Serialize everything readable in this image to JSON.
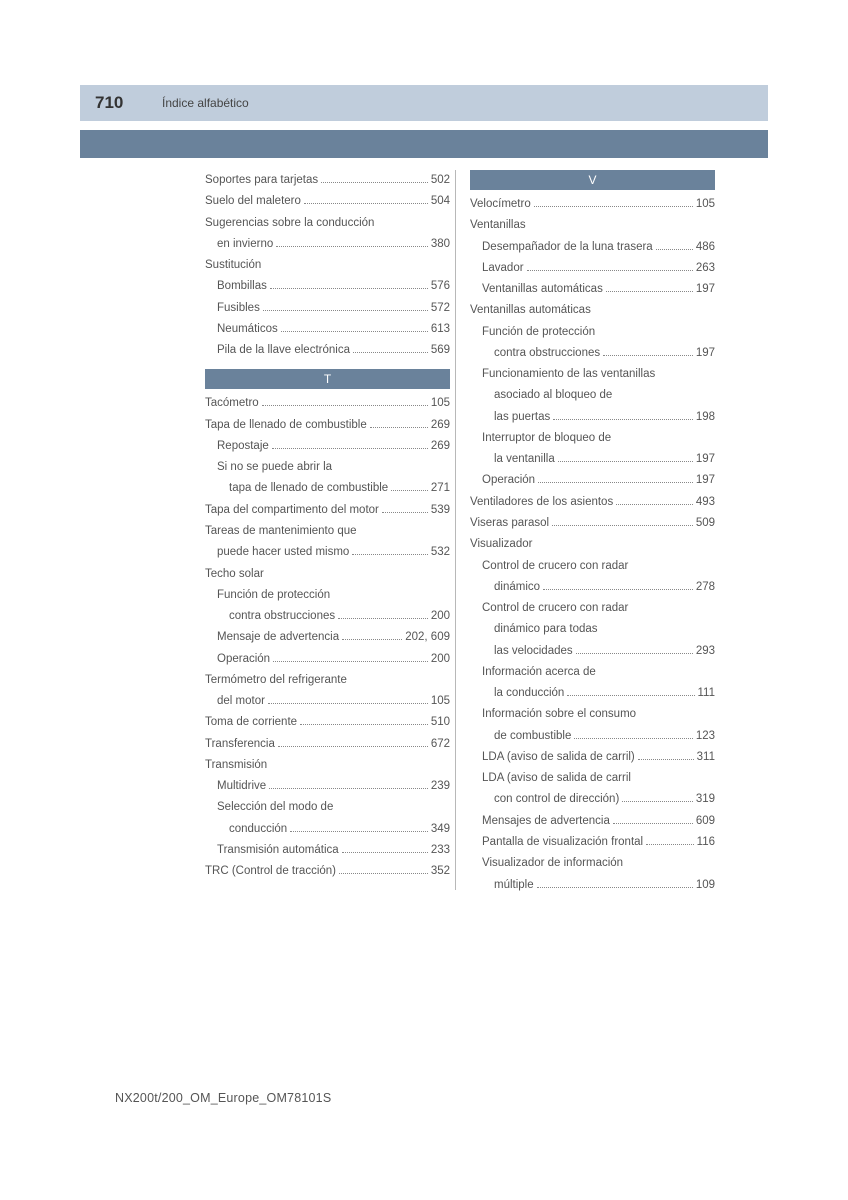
{
  "header": {
    "page_number": "710",
    "title": "Índice alfabético"
  },
  "footer": "NX200t/200_OM_Europe_OM78101S",
  "colors": {
    "header_band": "#c0cddc",
    "blue_bar": "#6a829b",
    "text": "#555555",
    "divider": "#b8b8b8"
  },
  "sections": {
    "T": "T",
    "V": "V"
  },
  "left_column": [
    {
      "label": "Soportes para tarjetas",
      "page": "502",
      "indent": 0
    },
    {
      "label": "Suelo del maletero",
      "page": "504",
      "indent": 0
    },
    {
      "label": "Sugerencias sobre la conducción",
      "page": "",
      "indent": 0,
      "noline": true
    },
    {
      "label": "en invierno",
      "page": "380",
      "indent": 1
    },
    {
      "label": "Sustitución",
      "page": "",
      "indent": 0,
      "noline": true
    },
    {
      "label": "Bombillas",
      "page": "576",
      "indent": 1
    },
    {
      "label": "Fusibles",
      "page": "572",
      "indent": 1
    },
    {
      "label": "Neumáticos",
      "page": "613",
      "indent": 1
    },
    {
      "label": "Pila de la llave electrónica",
      "page": "569",
      "indent": 1
    }
  ],
  "left_column_t": [
    {
      "label": "Tacómetro",
      "page": "105",
      "indent": 0
    },
    {
      "label": "Tapa de llenado de combustible",
      "page": "269",
      "indent": 0
    },
    {
      "label": "Repostaje",
      "page": "269",
      "indent": 1
    },
    {
      "label": "Si no se puede abrir la",
      "page": "",
      "indent": 1,
      "noline": true
    },
    {
      "label": "tapa de llenado de combustible",
      "page": "271",
      "indent": 2
    },
    {
      "label": "Tapa del compartimento del motor",
      "page": "539",
      "indent": 0
    },
    {
      "label": "Tareas de mantenimiento que",
      "page": "",
      "indent": 0,
      "noline": true
    },
    {
      "label": "puede hacer usted mismo",
      "page": "532",
      "indent": 1
    },
    {
      "label": "Techo solar",
      "page": "",
      "indent": 0,
      "noline": true
    },
    {
      "label": "Función de protección",
      "page": "",
      "indent": 1,
      "noline": true
    },
    {
      "label": "contra obstrucciones",
      "page": "200",
      "indent": 2
    },
    {
      "label": "Mensaje de advertencia",
      "page": "202, 609",
      "indent": 1
    },
    {
      "label": "Operación",
      "page": "200",
      "indent": 1
    },
    {
      "label": "Termómetro del refrigerante",
      "page": "",
      "indent": 0,
      "noline": true
    },
    {
      "label": "del motor",
      "page": "105",
      "indent": 1
    },
    {
      "label": "Toma de corriente",
      "page": "510",
      "indent": 0
    },
    {
      "label": "Transferencia",
      "page": "672",
      "indent": 0
    },
    {
      "label": "Transmisión",
      "page": "",
      "indent": 0,
      "noline": true
    },
    {
      "label": "Multidrive",
      "page": "239",
      "indent": 1
    },
    {
      "label": "Selección del modo de",
      "page": "",
      "indent": 1,
      "noline": true
    },
    {
      "label": "conducción",
      "page": "349",
      "indent": 2
    },
    {
      "label": "Transmisión automática",
      "page": "233",
      "indent": 1
    },
    {
      "label": "TRC (Control de tracción)",
      "page": "352",
      "indent": 0
    }
  ],
  "right_column": [
    {
      "label": "Velocímetro",
      "page": "105",
      "indent": 0
    },
    {
      "label": "Ventanillas",
      "page": "",
      "indent": 0,
      "noline": true
    },
    {
      "label": "Desempañador de la luna trasera",
      "page": "486",
      "indent": 1
    },
    {
      "label": "Lavador",
      "page": "263",
      "indent": 1
    },
    {
      "label": "Ventanillas automáticas",
      "page": "197",
      "indent": 1
    },
    {
      "label": "Ventanillas automáticas",
      "page": "",
      "indent": 0,
      "noline": true
    },
    {
      "label": "Función de protección",
      "page": "",
      "indent": 1,
      "noline": true
    },
    {
      "label": "contra obstrucciones",
      "page": "197",
      "indent": 2
    },
    {
      "label": "Funcionamiento de las ventanillas",
      "page": "",
      "indent": 1,
      "noline": true
    },
    {
      "label": "asociado al bloqueo de",
      "page": "",
      "indent": 2,
      "noline": true
    },
    {
      "label": "las puertas",
      "page": "198",
      "indent": 2
    },
    {
      "label": "Interruptor de bloqueo de",
      "page": "",
      "indent": 1,
      "noline": true
    },
    {
      "label": "la ventanilla",
      "page": "197",
      "indent": 2
    },
    {
      "label": "Operación",
      "page": "197",
      "indent": 1
    },
    {
      "label": "Ventiladores de los asientos",
      "page": "493",
      "indent": 0
    },
    {
      "label": "Viseras parasol",
      "page": "509",
      "indent": 0
    },
    {
      "label": "Visualizador",
      "page": "",
      "indent": 0,
      "noline": true
    },
    {
      "label": "Control de crucero con radar",
      "page": "",
      "indent": 1,
      "noline": true
    },
    {
      "label": "dinámico",
      "page": "278",
      "indent": 2
    },
    {
      "label": "Control de crucero con radar",
      "page": "",
      "indent": 1,
      "noline": true
    },
    {
      "label": "dinámico para todas",
      "page": "",
      "indent": 2,
      "noline": true
    },
    {
      "label": "las velocidades",
      "page": "293",
      "indent": 2
    },
    {
      "label": "Información acerca de",
      "page": "",
      "indent": 1,
      "noline": true
    },
    {
      "label": "la conducción",
      "page": "111",
      "indent": 2
    },
    {
      "label": "Información sobre el consumo",
      "page": "",
      "indent": 1,
      "noline": true
    },
    {
      "label": "de combustible",
      "page": "123",
      "indent": 2
    },
    {
      "label": "LDA (aviso de salida de carril)",
      "page": "311",
      "indent": 1
    },
    {
      "label": "LDA (aviso de salida de carril",
      "page": "",
      "indent": 1,
      "noline": true
    },
    {
      "label": "con control de dirección)",
      "page": "319",
      "indent": 2
    },
    {
      "label": "Mensajes de advertencia",
      "page": "609",
      "indent": 1
    },
    {
      "label": "Pantalla de visualización frontal",
      "page": "116",
      "indent": 1
    },
    {
      "label": "Visualizador de información",
      "page": "",
      "indent": 1,
      "noline": true
    },
    {
      "label": "múltiple",
      "page": "109",
      "indent": 2
    }
  ]
}
